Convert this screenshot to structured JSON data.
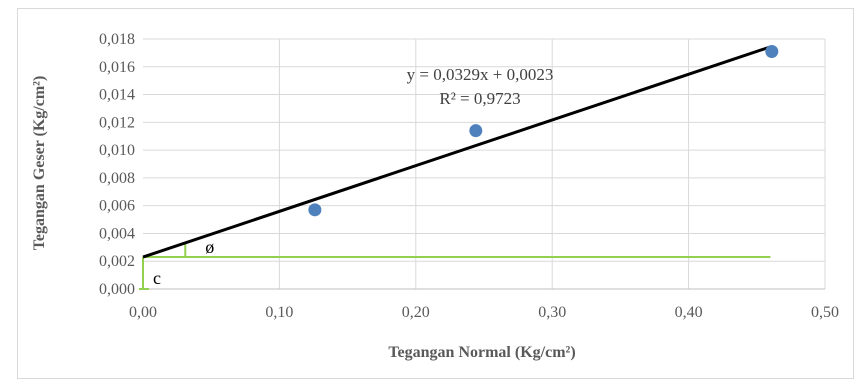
{
  "chart_data": {
    "type": "scatter",
    "title": "",
    "xlabel": "Tegangan Normal (Kg/cm²)",
    "ylabel": "Tegangan Geser (Kg/cm²)",
    "xlim": [
      0,
      0.5
    ],
    "ylim": [
      0,
      0.018
    ],
    "x_ticks": [
      "0,00",
      "0,10",
      "0,20",
      "0,30",
      "0,40",
      "0,50"
    ],
    "y_ticks": [
      "0,000",
      "0,002",
      "0,004",
      "0,006",
      "0,008",
      "0,010",
      "0,012",
      "0,014",
      "0,016",
      "0,018"
    ],
    "grid": true,
    "legend": "none",
    "series": [
      {
        "x": [
          0.126,
          0.244,
          0.461
        ],
        "y": [
          0.0057,
          0.0114,
          0.0171
        ],
        "color": "#4f81bd"
      }
    ],
    "trendline": {
      "slope": 0.0329,
      "intercept": 0.0023,
      "x_range": [
        0,
        0.46
      ],
      "color": "#000000",
      "equation": "y = 0,0329x + 0,0023",
      "r_squared": "R² = 0,9723"
    },
    "annotations": {
      "color": "#92d050",
      "cohesion_label": "c",
      "angle_label": "ø",
      "cohesion_value": 0.0023,
      "horizontal_line_x_end": 0.46,
      "angle_marker_x": 0.031
    }
  }
}
